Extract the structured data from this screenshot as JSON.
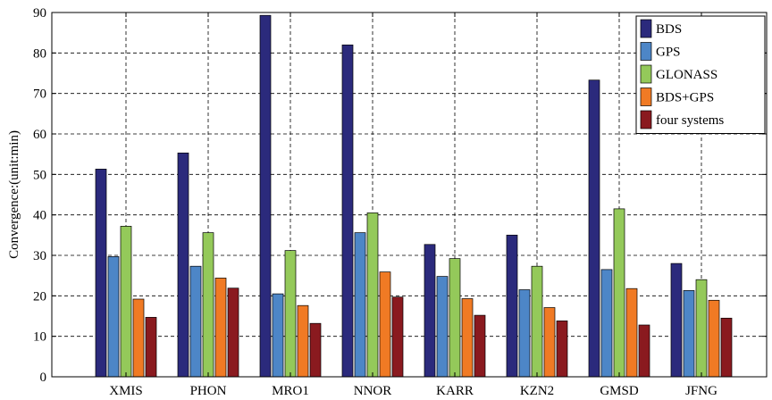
{
  "chart_data": {
    "type": "bar",
    "title": "",
    "xlabel": "",
    "ylabel": "Convergence:(unit:min)",
    "ylim": [
      0,
      90
    ],
    "yticks": [
      0,
      10,
      20,
      30,
      40,
      50,
      60,
      70,
      80,
      90
    ],
    "grid": true,
    "legend_position": "top-right",
    "categories": [
      "XMIS",
      "PHON",
      "MRO1",
      "NNOR",
      "KARR",
      "KZN2",
      "GMSD",
      "JFNG"
    ],
    "series": [
      {
        "name": "BDS",
        "color": "#2b2a7c",
        "values": [
          51.3,
          55.3,
          89.3,
          82.0,
          32.7,
          35.0,
          73.3,
          28.0
        ]
      },
      {
        "name": "GPS",
        "color": "#4d86c7",
        "values": [
          29.7,
          27.3,
          20.5,
          35.6,
          24.8,
          21.5,
          26.5,
          21.3
        ]
      },
      {
        "name": "GLONASS",
        "color": "#94c95a",
        "values": [
          37.2,
          35.6,
          31.2,
          40.5,
          29.2,
          27.3,
          41.5,
          24.0
        ]
      },
      {
        "name": "BDS+GPS",
        "color": "#f07a24",
        "values": [
          19.2,
          24.4,
          17.6,
          25.9,
          19.3,
          17.1,
          21.8,
          18.9
        ]
      },
      {
        "name": "four systems",
        "color": "#8a1a1f",
        "values": [
          14.7,
          21.9,
          13.2,
          19.7,
          15.2,
          13.8,
          12.8,
          14.5
        ]
      }
    ]
  }
}
